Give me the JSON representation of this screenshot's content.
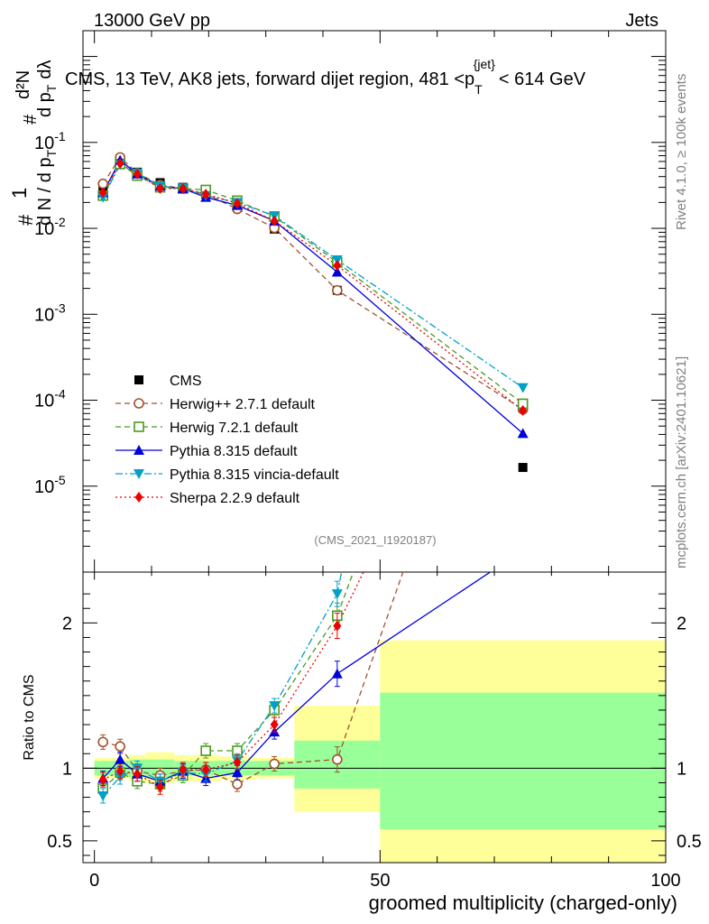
{
  "header": {
    "left": "13000 GeV pp",
    "right": "Jets"
  },
  "side": {
    "rivet": "Rivet 4.1.0, ≥ 100k events",
    "mcplots": "mcplots.cern.ch [arXiv:2401.10621]"
  },
  "chart_data": {
    "type": "line",
    "title": "CMS, 13 TeV, AK8 jets, forward dijet region, 481 < p_T^{jet} < 614 GeV",
    "title_parts": {
      "main": "CMS, 13 TeV, AK8 jets, forward dijet region, 481 <p",
      "sub": "T",
      "sup": "{jet}",
      "tail": "< 614 GeV"
    },
    "analysis_id": "(CMS_2021_I1920187)",
    "ylabel_top": "1/dN/dp_T  d^2N/dp_T dλ",
    "ylabel_parts": {
      "one": "1",
      "hash": "#",
      "dn": "d N / d p",
      "t": "T",
      "d2n": "d²N",
      "dpt": "d p",
      "dl": "dλ"
    },
    "ylabel_ratio": "Ratio to CMS",
    "xlabel": "groomed multiplicity (charged-only)",
    "xlim": [
      -2,
      100
    ],
    "ylim_main_log10": [
      -6,
      0.3
    ],
    "ylim_ratio": [
      0.35,
      2.35
    ],
    "x_ticks": [
      0,
      50,
      100
    ],
    "y_ticks_main": [
      {
        "exp": -5,
        "label": "10",
        "sup": "-5"
      },
      {
        "exp": -4,
        "label": "10",
        "sup": "-4"
      },
      {
        "exp": -3,
        "label": "10",
        "sup": "-3"
      },
      {
        "exp": -2,
        "label": "10",
        "sup": "-2"
      },
      {
        "exp": -1,
        "label": "10",
        "sup": "-1"
      }
    ],
    "y_ticks_ratio": [
      0.5,
      1,
      2
    ],
    "x": [
      1.5,
      4.5,
      7.5,
      11.5,
      15.5,
      19.5,
      25,
      31.5,
      42.5,
      75
    ],
    "bin_edges": [
      0,
      3,
      6,
      9,
      14,
      17,
      22,
      28,
      35,
      50,
      100
    ],
    "series": [
      {
        "name": "CMS",
        "color": "#000000",
        "style": "data",
        "values": [
          0.028,
          0.058,
          0.045,
          0.034,
          0.03,
          0.025,
          0.019,
          0.0098,
          0.0019,
          1.65e-05
        ]
      },
      {
        "name": "Herwig++ 2.7.1 default",
        "color": "#a0522d",
        "style": "dash",
        "marker": "circle-open",
        "values": [
          0.033,
          0.067,
          0.044,
          0.032,
          0.029,
          0.025,
          0.0168,
          0.0101,
          0.0019,
          7.8e-05
        ],
        "ratio": [
          1.18,
          1.15,
          0.98,
          0.95,
          0.98,
          0.99,
          0.89,
          1.03,
          1.06,
          4.7
        ]
      },
      {
        "name": "Herwig 7.2.1 default",
        "color": "#4a9a1e",
        "style": "dash",
        "marker": "square-open",
        "values": [
          0.024,
          0.056,
          0.041,
          0.03,
          0.029,
          0.028,
          0.021,
          0.0137,
          0.004,
          9.1e-05
        ],
        "ratio": [
          0.86,
          0.97,
          0.91,
          0.89,
          0.95,
          1.12,
          1.12,
          1.4,
          2.05,
          5.5
        ]
      },
      {
        "name": "Pythia 8.315 default",
        "color": "#0000dd",
        "style": "solid",
        "marker": "triangle-up",
        "values": [
          0.026,
          0.062,
          0.043,
          0.031,
          0.029,
          0.023,
          0.0185,
          0.0122,
          0.0031,
          4.1e-05
        ],
        "ratio": [
          0.93,
          1.06,
          0.96,
          0.91,
          0.98,
          0.93,
          0.97,
          1.25,
          1.65,
          2.5
        ]
      },
      {
        "name": "Pythia 8.315 vincia-default",
        "color": "#00a0c8",
        "style": "dashdot",
        "marker": "triangle-down",
        "values": [
          0.023,
          0.055,
          0.044,
          0.031,
          0.029,
          0.024,
          0.02,
          0.014,
          0.0043,
          0.00014
        ],
        "ratio": [
          0.81,
          0.94,
          1.0,
          0.91,
          0.97,
          0.96,
          1.05,
          1.43,
          2.2,
          8.5
        ]
      },
      {
        "name": "Sherpa 2.2.9 default",
        "color": "#ee0000",
        "style": "dot",
        "marker": "diamond",
        "values": [
          0.026,
          0.057,
          0.043,
          0.029,
          0.029,
          0.025,
          0.0195,
          0.0122,
          0.0037,
          7.6e-05
        ],
        "ratio": [
          0.92,
          0.98,
          0.96,
          0.87,
          0.99,
          0.99,
          1.04,
          1.3,
          1.98,
          4.6
        ]
      }
    ],
    "ratio_bands": {
      "inner": [
        [
          0.95,
          1.05
        ],
        [
          0.95,
          1.05
        ],
        [
          0.94,
          1.06
        ],
        [
          0.94,
          1.06
        ],
        [
          0.95,
          1.05
        ],
        [
          0.95,
          1.05
        ],
        [
          0.95,
          1.05
        ],
        [
          0.95,
          1.05
        ],
        [
          0.86,
          1.19
        ],
        [
          0.58,
          1.52
        ]
      ],
      "outer": [
        [
          0.93,
          1.07
        ],
        [
          0.93,
          1.07
        ],
        [
          0.91,
          1.09
        ],
        [
          0.9,
          1.11
        ],
        [
          0.91,
          1.09
        ],
        [
          0.91,
          1.09
        ],
        [
          0.92,
          1.08
        ],
        [
          0.93,
          1.07
        ],
        [
          0.7,
          1.43
        ],
        [
          0.35,
          1.88
        ]
      ],
      "inner_color": "#99ff99",
      "outer_color": "#ffff99"
    },
    "legend": {
      "placement": "lower-left"
    }
  }
}
